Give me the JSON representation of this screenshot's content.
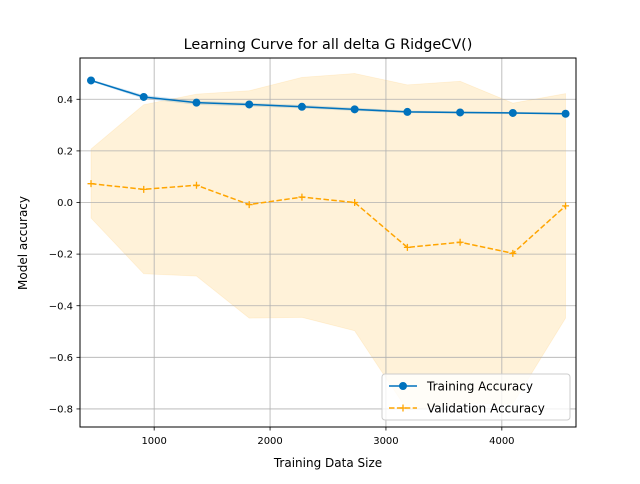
{
  "chart_data": {
    "type": "line",
    "title": "Learning Curve for all delta G RidgeCV()",
    "xlabel": "Training Data Size",
    "ylabel": "Model accuracy",
    "xlim": [
      360,
      4640
    ],
    "ylim": [
      -0.87,
      0.56
    ],
    "x_ticks": [
      1000,
      2000,
      3000,
      4000
    ],
    "x_tick_labels": [
      "1000",
      "2000",
      "3000",
      "4000"
    ],
    "y_ticks": [
      -0.8,
      -0.6,
      -0.4,
      -0.2,
      0.0,
      0.2,
      0.4
    ],
    "y_tick_labels": [
      "−0.8",
      "−0.6",
      "−0.4",
      "−0.2",
      "0.0",
      "0.2",
      "0.4"
    ],
    "grid": true,
    "legend_position": "lower-right",
    "x": [
      455,
      910,
      1365,
      1820,
      2275,
      2730,
      3185,
      3640,
      4095,
      4550
    ],
    "series": [
      {
        "name": "Training Accuracy",
        "color": "#0072BD",
        "line_style": "solid",
        "marker": "circle",
        "values": [
          0.473,
          0.409,
          0.387,
          0.38,
          0.371,
          0.361,
          0.351,
          0.349,
          0.347,
          0.344
        ],
        "band_lower": [
          0.47,
          0.403,
          0.38,
          0.374,
          0.366,
          0.356,
          0.348,
          0.346,
          0.344,
          0.342
        ],
        "band_upper": [
          0.476,
          0.415,
          0.393,
          0.385,
          0.377,
          0.366,
          0.355,
          0.352,
          0.35,
          0.347
        ]
      },
      {
        "name": "Validation Accuracy",
        "color": "#FFA500",
        "line_style": "dashed",
        "marker": "plus",
        "values": [
          0.073,
          0.051,
          0.067,
          -0.008,
          0.021,
          0.0,
          -0.174,
          -0.154,
          -0.197,
          -0.013
        ],
        "band_lower": [
          -0.06,
          -0.276,
          -0.285,
          -0.448,
          -0.445,
          -0.497,
          -0.805,
          -0.778,
          -0.78,
          -0.448
        ],
        "band_upper": [
          0.207,
          0.379,
          0.42,
          0.433,
          0.485,
          0.5,
          0.456,
          0.47,
          0.385,
          0.422
        ]
      }
    ]
  }
}
